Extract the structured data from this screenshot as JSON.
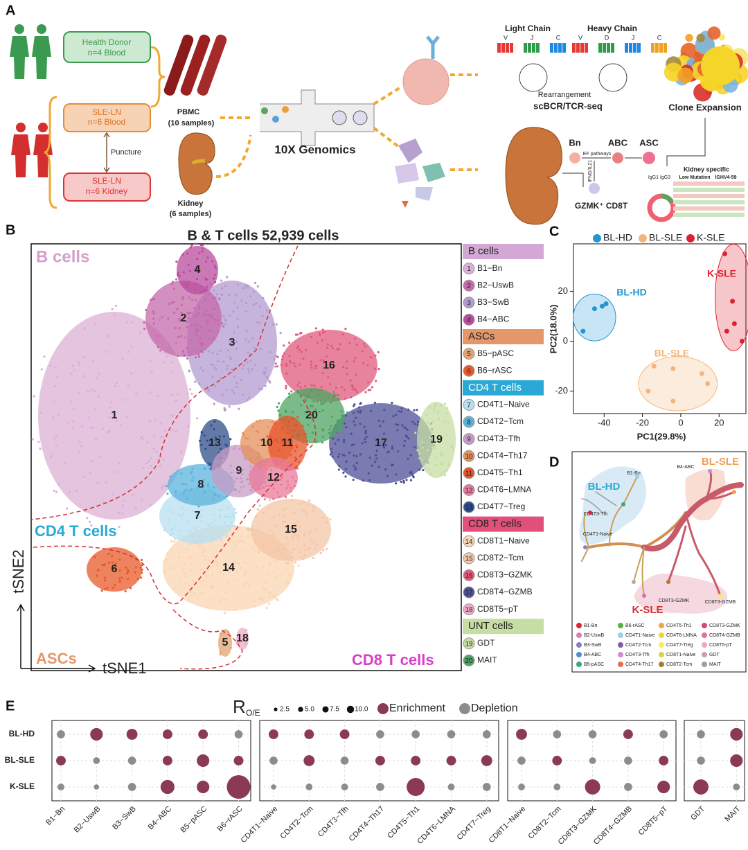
{
  "panel_a": {
    "label": "A",
    "health_donor": [
      "Health Donor",
      "n=4 Blood"
    ],
    "sle_blood": [
      "SLE-LN",
      "n=6 Blood"
    ],
    "puncture": "Puncture",
    "sle_kidney": [
      "SLE-LN",
      "n=6 Kidney"
    ],
    "pbmc": [
      "PBMC",
      "(10 samples)"
    ],
    "kidney": [
      "Kidney",
      "(6 samples)"
    ],
    "platform": "10X Genomics",
    "light_chain": {
      "title": "Light Chain",
      "segments": [
        "V",
        "J",
        "C"
      ]
    },
    "heavy_chain": {
      "title": "Heavy Chain",
      "segments": [
        "V",
        "D",
        "J",
        "C"
      ]
    },
    "rearrangement": "Rearrangement",
    "method": "scBCR/TCR-seq",
    "clone_expansion": "Clone Expansion",
    "trajectory": {
      "nodes": [
        "Bn",
        "ABC",
        "ASC"
      ],
      "pathway": "EF pathways",
      "signal": "IFNG/IL21",
      "helper": "GZMK⁺ CD8T"
    },
    "isotypes": "IgG1 IgG3",
    "kidney_specific": {
      "title": "Kidney specific",
      "features": [
        "Low Mutation",
        "IGHV4-59"
      ]
    }
  },
  "panel_b": {
    "label": "B",
    "title": "B & T cells 52,939 cells",
    "x_axis": "tSNE1",
    "y_axis": "tSNE2",
    "regions": [
      "B cells",
      "CD4 T cells",
      "ASCs",
      "CD8 T cells"
    ],
    "groups": [
      {
        "name": "B cells",
        "color": "#d4a8d4",
        "clusters": [
          {
            "number": 1,
            "label": "B1−Bn",
            "color": "#dcb0d6"
          },
          {
            "number": 2,
            "label": "B2−UswB",
            "color": "#c46aa9"
          },
          {
            "number": 3,
            "label": "B3−SwB",
            "color": "#b39bd0"
          },
          {
            "number": 4,
            "label": "B4−ABC",
            "color": "#b84c9e"
          }
        ]
      },
      {
        "name": "ASCs",
        "color": "#e3976a",
        "clusters": [
          {
            "number": 5,
            "label": "B5−pASC",
            "color": "#e0a473"
          },
          {
            "number": 6,
            "label": "B6−rASC",
            "color": "#e85a2a"
          }
        ]
      },
      {
        "name": "CD4 T cells",
        "color": "#2aa9d6",
        "clusters": [
          {
            "number": 7,
            "label": "CD4T1−Naive",
            "color": "#b8dff0"
          },
          {
            "number": 8,
            "label": "CD4T2−Tcm",
            "color": "#5bb3dc"
          },
          {
            "number": 9,
            "label": "CD4T3−Tfh",
            "color": "#c79bc6"
          },
          {
            "number": 10,
            "label": "CD4T4−Th17",
            "color": "#e6905a"
          },
          {
            "number": 11,
            "label": "CD4T5−Th1",
            "color": "#e8542c"
          },
          {
            "number": 12,
            "label": "CD4T6−LMNA",
            "color": "#e9799a"
          },
          {
            "number": 13,
            "label": "CD4T7−Treg",
            "color": "#2f4d8a"
          }
        ]
      },
      {
        "name": "CD8 T cells",
        "color": "#e0507a",
        "clusters": [
          {
            "number": 14,
            "label": "CD8T1−Naive",
            "color": "#f9d6b2"
          },
          {
            "number": 15,
            "label": "CD8T2−Tcm",
            "color": "#f4c6a6"
          },
          {
            "number": 16,
            "label": "CD8T3−GZMK",
            "color": "#e05a7d"
          },
          {
            "number": 17,
            "label": "CD8T4−GZMB",
            "color": "#4d4f96"
          },
          {
            "number": 18,
            "label": "CD8T5−pT",
            "color": "#f1a9c8"
          }
        ]
      },
      {
        "name": "UNT cells",
        "color": "#c6dea3",
        "clusters": [
          {
            "number": 19,
            "label": "GDT",
            "color": "#c6dea3"
          },
          {
            "number": 20,
            "label": "MAIT",
            "color": "#4ea461"
          }
        ]
      }
    ]
  },
  "panel_c": {
    "label": "C"
  },
  "panel_d": {
    "label": "D",
    "regions": [
      "BL-HD",
      "BL-SLE",
      "K-SLE"
    ],
    "node_labels": [
      "B1-Bn",
      "B4-ABC",
      "CD4T3-Tfh",
      "CD4T1-Naive",
      "CD8T3-GZMK",
      "CD8T3-GZMB"
    ],
    "legend": [
      {
        "name": "B1-Bn",
        "color": "#e0202e"
      },
      {
        "name": "B2-UswB",
        "color": "#e679b4"
      },
      {
        "name": "B3-SwB",
        "color": "#8e7cc3"
      },
      {
        "name": "B4-ABC",
        "color": "#4f8fd6"
      },
      {
        "name": "B5-pASC",
        "color": "#3aa386"
      },
      {
        "name": "B6-rASC",
        "color": "#58b04a"
      },
      {
        "name": "CD4T1-Naive",
        "color": "#9ccfe8"
      },
      {
        "name": "CD4T2-Tcm",
        "color": "#7d5ca8"
      },
      {
        "name": "CD4T3-Tfh",
        "color": "#c98fd0"
      },
      {
        "name": "CD4T4-Th17",
        "color": "#e0704d"
      },
      {
        "name": "CD4T5-Th1",
        "color": "#f2a33a"
      },
      {
        "name": "CD4T6-LMNA",
        "color": "#f4d23a"
      },
      {
        "name": "CD4T7-Treg",
        "color": "#f7ee55"
      },
      {
        "name": "CD8T1-Naive",
        "color": "#d9d34a"
      },
      {
        "name": "CD8T2-Tcm",
        "color": "#b07a2e"
      },
      {
        "name": "CD8T3-GZMK",
        "color": "#d4476f"
      },
      {
        "name": "CD8T4-GZMB",
        "color": "#e0729a"
      },
      {
        "name": "CD8T5-pT",
        "color": "#f1a5c8"
      },
      {
        "name": "GDT",
        "color": "#c6a3a3"
      },
      {
        "name": "MAIT",
        "color": "#9e9e9e"
      }
    ]
  },
  "panel_e": {
    "label": "E"
  },
  "chart_data": [
    {
      "type": "scatter",
      "x_label": "PC1(29.8%)",
      "y_label": "PC2(18.0%)",
      "xlim": [
        -56,
        34
      ],
      "ylim": [
        -29,
        39
      ],
      "xticks": [
        -40,
        -20,
        0,
        20
      ],
      "yticks": [
        -20,
        0,
        20
      ],
      "series": [
        {
          "name": "BL-HD",
          "color": "#2196d3",
          "x": [
            -51,
            -45,
            -41,
            -39
          ],
          "y": [
            4,
            13,
            14,
            15
          ]
        },
        {
          "name": "BL-SLE",
          "color": "#f5b57a",
          "x": [
            -14,
            -4,
            11,
            14,
            -17,
            -4
          ],
          "y": [
            -10,
            -11,
            -13,
            -17,
            -20,
            -24
          ]
        },
        {
          "name": "K-SLE",
          "color": "#e0202e",
          "x": [
            23,
            27,
            28,
            24,
            32
          ],
          "y": [
            35,
            16,
            7,
            4,
            0
          ]
        }
      ]
    },
    {
      "type": "dot",
      "size_title": "R",
      "size_subscript": "O/E",
      "size_legend": [
        2.5,
        {
          "value": 5,
          "label": "5.0"
        },
        7.5,
        {
          "value": 10,
          "label": "10.0"
        }
      ],
      "status_legend": [
        {
          "name": "Enrichment",
          "color": "#8b3a55"
        },
        {
          "name": "Depletion",
          "color": "#8c8c8c"
        }
      ],
      "category_groups": [
        [
          "B1−Bn",
          "B2−UswB",
          "B3−SwB",
          "B4−ABC",
          "B5−pASC",
          "B6−rASC"
        ],
        [
          "CD4T1−Naive",
          "CD4T2−Tcm",
          "CD4T3−Tfh",
          "CD4T4−Th17",
          "CD4T5−Th1",
          "CD4T6−LMNA",
          "CD4T7−Treg"
        ],
        [
          "CD8T1−Naive",
          "CD8T2−Tcm",
          "CD8T3−GZMK",
          "CD8T4−GZMB",
          "CD8T5−pT"
        ],
        [
          "GDT",
          "MAIT"
        ]
      ],
      "rows": [
        {
          "name": "BL-HD",
          "values": [
            [
              7,
              17,
              13,
              10,
              10,
              7
            ],
            [
              10,
              10,
              10,
              7,
              7,
              7,
              7
            ],
            [
              13,
              7,
              7,
              10,
              7
            ],
            [
              7,
              17
            ]
          ],
          "status": [
            [
              1,
              0,
              0,
              0,
              0,
              1
            ],
            [
              0,
              0,
              0,
              1,
              1,
              1,
              1
            ],
            [
              0,
              1,
              1,
              0,
              1
            ],
            [
              1,
              0
            ]
          ]
        },
        {
          "name": "BL-SLE",
          "values": [
            [
              10,
              5,
              7,
              10,
              17,
              10
            ],
            [
              7,
              13,
              7,
              10,
              10,
              10,
              13
            ],
            [
              7,
              10,
              5,
              7,
              10
            ],
            [
              7,
              17
            ]
          ],
          "status": [
            [
              0,
              1,
              1,
              0,
              0,
              0
            ],
            [
              1,
              0,
              1,
              0,
              0,
              0,
              0
            ],
            [
              1,
              0,
              1,
              1,
              0
            ],
            [
              1,
              0
            ]
          ]
        },
        {
          "name": "K-SLE",
          "values": [
            [
              5,
              3,
              7,
              21,
              17,
              60
            ],
            [
              3,
              5,
              5,
              7,
              35,
              5,
              7
            ],
            [
              5,
              5,
              25,
              7,
              17
            ],
            [
              25,
              5
            ]
          ],
          "status": [
            [
              1,
              1,
              1,
              0,
              0,
              0
            ],
            [
              1,
              1,
              1,
              1,
              0,
              1,
              1
            ],
            [
              1,
              1,
              0,
              1,
              0
            ],
            [
              0,
              1
            ]
          ]
        }
      ]
    }
  ]
}
